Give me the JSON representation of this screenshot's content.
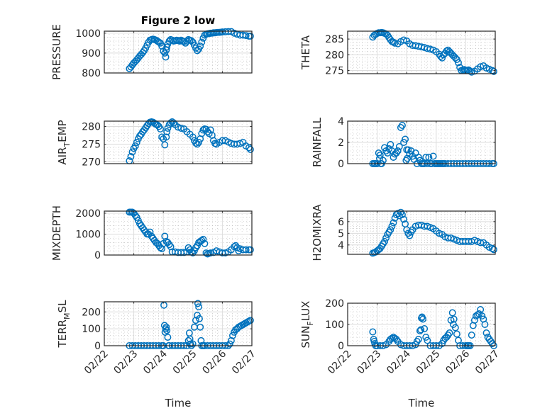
{
  "figure": {
    "marker_color": "#0072BD",
    "marker": "circle-open"
  },
  "chart_data": [
    {
      "id": "pressure",
      "type": "scatter",
      "title": "Figure 2 low",
      "ylabel": "PRESSURE",
      "ylabel_sub": null,
      "xlabel": "",
      "x_unit": "days since 02/22 00:00",
      "xlim": [
        0,
        5
      ],
      "ylim": [
        800,
        1010
      ],
      "yticks": [
        800,
        900,
        1000
      ],
      "xticks": [
        "02/22",
        "02/23",
        "02/24",
        "02/25",
        "02/26",
        "02/27"
      ],
      "xtick_labels_shown": false,
      "grid": "major+minor",
      "x": [
        0.85,
        0.9,
        0.95,
        1.0,
        1.05,
        1.1,
        1.15,
        1.2,
        1.25,
        1.3,
        1.35,
        1.4,
        1.45,
        1.5,
        1.55,
        1.6,
        1.65,
        1.7,
        1.75,
        1.8,
        1.85,
        1.9,
        1.95,
        2.0,
        2.05,
        2.08,
        2.1,
        2.12,
        2.15,
        2.2,
        2.25,
        2.3,
        2.35,
        2.4,
        2.45,
        2.5,
        2.55,
        2.6,
        2.65,
        2.7,
        2.75,
        2.8,
        2.85,
        2.9,
        2.95,
        3.0,
        3.05,
        3.1,
        3.15,
        3.2,
        3.25,
        3.3,
        3.35,
        3.4,
        3.45,
        3.5,
        3.55,
        3.6,
        3.65,
        3.7,
        3.75,
        3.8,
        3.85,
        3.9,
        3.95,
        4.0,
        4.1,
        4.2,
        4.3,
        4.4,
        4.5,
        4.6,
        4.7,
        4.8,
        4.9,
        4.95
      ],
      "y": [
        822,
        830,
        840,
        850,
        858,
        866,
        875,
        885,
        893,
        902,
        912,
        925,
        940,
        955,
        965,
        968,
        970,
        968,
        965,
        960,
        955,
        950,
        935,
        910,
        900,
        880,
        915,
        930,
        945,
        960,
        968,
        965,
        960,
        962,
        965,
        963,
        960,
        965,
        960,
        958,
        950,
        960,
        968,
        965,
        962,
        955,
        940,
        925,
        912,
        920,
        935,
        955,
        975,
        990,
        995,
        997,
        998,
        1000,
        1000,
        1002,
        1002,
        1003,
        1004,
        1004,
        1005,
        1006,
        1007,
        1008,
        1008,
        1000,
        995,
        990,
        990,
        988,
        985,
        985
      ]
    },
    {
      "id": "theta",
      "type": "scatter",
      "title": "",
      "ylabel": "THETA",
      "ylabel_sub": null,
      "xlabel": "",
      "x_unit": "days since 02/22 00:00",
      "xlim": [
        0,
        5
      ],
      "ylim": [
        274,
        287.5
      ],
      "yticks": [
        275,
        280,
        285
      ],
      "xticks": [
        "02/22",
        "02/23",
        "02/24",
        "02/25",
        "02/26",
        "02/27"
      ],
      "xtick_labels_shown": false,
      "grid": "major+minor",
      "x": [
        0.85,
        0.9,
        0.95,
        1.0,
        1.05,
        1.1,
        1.15,
        1.2,
        1.25,
        1.3,
        1.35,
        1.4,
        1.45,
        1.5,
        1.55,
        1.6,
        1.7,
        1.8,
        1.9,
        2.0,
        2.1,
        2.2,
        2.3,
        2.4,
        2.5,
        2.6,
        2.7,
        2.8,
        2.9,
        3.0,
        3.1,
        3.15,
        3.2,
        3.25,
        3.3,
        3.35,
        3.4,
        3.45,
        3.5,
        3.55,
        3.6,
        3.65,
        3.7,
        3.75,
        3.8,
        3.85,
        3.9,
        3.95,
        4.0,
        4.05,
        4.1,
        4.15,
        4.2,
        4.3,
        4.4,
        4.5,
        4.6,
        4.7,
        4.8,
        4.9,
        4.95
      ],
      "y": [
        285.6,
        286.2,
        286.5,
        286.8,
        287.0,
        287.0,
        287.1,
        287.0,
        286.8,
        286.6,
        286.2,
        285.5,
        284.8,
        284.2,
        284.0,
        283.7,
        283.5,
        284.2,
        284.7,
        284.4,
        283.5,
        283.0,
        282.9,
        282.7,
        282.5,
        282.3,
        282.0,
        281.8,
        281.5,
        281.0,
        280.2,
        279.5,
        279.0,
        280.0,
        280.5,
        281.2,
        281.5,
        281.0,
        280.5,
        280.0,
        279.5,
        279.0,
        278.5,
        277.5,
        276.0,
        275.0,
        275.2,
        275.3,
        275.0,
        275.1,
        275.2,
        274.8,
        274.5,
        274.8,
        275.5,
        276.2,
        276.5,
        275.8,
        275.4,
        275.0,
        274.7
      ]
    },
    {
      "id": "air_temp",
      "type": "scatter",
      "title": "",
      "ylabel": "AIR",
      "ylabel_sub": "T",
      "ylabel_rest": "EMP",
      "xlabel": "",
      "x_unit": "days since 02/22 00:00",
      "xlim": [
        0,
        5
      ],
      "ylim": [
        269.5,
        281.5
      ],
      "yticks": [
        270,
        275,
        280
      ],
      "xticks": [
        "02/22",
        "02/23",
        "02/24",
        "02/25",
        "02/26",
        "02/27"
      ],
      "xtick_labels_shown": false,
      "grid": "major+minor",
      "x": [
        0.85,
        0.9,
        0.95,
        1.0,
        1.05,
        1.1,
        1.15,
        1.2,
        1.25,
        1.3,
        1.35,
        1.4,
        1.45,
        1.5,
        1.55,
        1.6,
        1.65,
        1.7,
        1.75,
        1.8,
        1.85,
        1.9,
        1.95,
        2.0,
        2.05,
        2.1,
        2.12,
        2.15,
        2.2,
        2.25,
        2.3,
        2.35,
        2.4,
        2.5,
        2.6,
        2.7,
        2.8,
        2.9,
        3.0,
        3.05,
        3.1,
        3.15,
        3.2,
        3.25,
        3.3,
        3.35,
        3.4,
        3.45,
        3.5,
        3.55,
        3.6,
        3.65,
        3.7,
        3.75,
        3.8,
        3.9,
        4.0,
        4.1,
        4.2,
        4.3,
        4.4,
        4.5,
        4.6,
        4.7,
        4.8,
        4.9,
        4.95
      ],
      "y": [
        270.3,
        271.5,
        272.8,
        273.8,
        274.5,
        275.5,
        276.5,
        277.3,
        277.8,
        278.5,
        279.0,
        279.6,
        280.2,
        280.8,
        281.2,
        281.3,
        281.2,
        280.9,
        280.6,
        280.4,
        280.0,
        279.3,
        277.0,
        276.5,
        274.8,
        277.0,
        278.5,
        279.5,
        280.5,
        281.0,
        281.3,
        281.0,
        280.5,
        279.8,
        279.5,
        279.3,
        278.5,
        277.8,
        277.0,
        276.0,
        275.3,
        275.0,
        275.5,
        276.5,
        278.0,
        279.0,
        279.3,
        279.2,
        278.5,
        278.0,
        279.0,
        277.5,
        276.0,
        275.2,
        275.0,
        275.5,
        276.0,
        276.0,
        275.6,
        275.2,
        275.0,
        275.0,
        275.2,
        275.5,
        274.5,
        274.0,
        273.5
      ]
    },
    {
      "id": "rainfall",
      "type": "scatter",
      "title": "",
      "ylabel": "RAINFALL",
      "ylabel_sub": null,
      "xlabel": "",
      "x_unit": "days since 02/22 00:00",
      "xlim": [
        0,
        5
      ],
      "ylim": [
        0,
        4
      ],
      "yticks": [
        0,
        2,
        4
      ],
      "xticks": [
        "02/22",
        "02/23",
        "02/24",
        "02/25",
        "02/26",
        "02/27"
      ],
      "xtick_labels_shown": false,
      "grid": "major+minor",
      "x": [
        0.85,
        0.9,
        0.95,
        1.0,
        1.05,
        1.08,
        1.1,
        1.12,
        1.15,
        1.2,
        1.25,
        1.3,
        1.35,
        1.4,
        1.45,
        1.5,
        1.55,
        1.6,
        1.65,
        1.7,
        1.75,
        1.8,
        1.85,
        1.9,
        1.95,
        1.98,
        2.0,
        2.02,
        2.05,
        2.1,
        2.15,
        2.2,
        2.25,
        2.3,
        2.35,
        2.4,
        2.45,
        2.5,
        2.55,
        2.6,
        2.65,
        2.7,
        2.75,
        2.8,
        2.85,
        2.9,
        2.95,
        3.0,
        3.05,
        3.1,
        3.15,
        3.2,
        3.25,
        3.3,
        3.4,
        3.5,
        3.6,
        3.7,
        3.8,
        3.9,
        4.0,
        4.1,
        4.2,
        4.3,
        4.4,
        4.5,
        4.6,
        4.7,
        4.8,
        4.9,
        4.95
      ],
      "y": [
        0,
        0,
        0,
        0,
        1.0,
        0.5,
        0.8,
        0,
        0,
        0.3,
        1.5,
        1.2,
        1.0,
        1.4,
        1.8,
        1.2,
        0.6,
        0.9,
        1.0,
        1.2,
        1.6,
        3.4,
        3.6,
        2.0,
        2.3,
        0.3,
        1.3,
        0.5,
        1.3,
        0.9,
        1.2,
        0.7,
        0.4,
        1.0,
        0,
        0.6,
        0.3,
        0,
        0,
        0,
        0.6,
        0,
        0.6,
        0,
        0,
        0.7,
        0,
        0,
        0,
        0,
        0,
        0,
        0,
        0,
        0,
        0,
        0,
        0,
        0,
        0,
        0,
        0,
        0,
        0,
        0,
        0,
        0,
        0,
        0,
        0,
        0
      ]
    },
    {
      "id": "mixdepth",
      "type": "scatter",
      "title": "",
      "ylabel": "MIXDEPTH",
      "ylabel_sub": null,
      "xlabel": "",
      "x_unit": "days since 02/22 00:00",
      "xlim": [
        0,
        5
      ],
      "ylim": [
        0,
        2100
      ],
      "yticks": [
        0,
        1000,
        2000
      ],
      "xticks": [
        "02/22",
        "02/23",
        "02/24",
        "02/25",
        "02/26",
        "02/27"
      ],
      "xtick_labels_shown": false,
      "grid": "major+minor",
      "x": [
        0.85,
        0.9,
        0.95,
        1.0,
        1.05,
        1.1,
        1.15,
        1.2,
        1.25,
        1.3,
        1.35,
        1.4,
        1.45,
        1.5,
        1.55,
        1.6,
        1.65,
        1.7,
        1.75,
        1.8,
        1.85,
        1.9,
        1.95,
        2.0,
        2.05,
        2.1,
        2.15,
        2.2,
        2.25,
        2.3,
        2.4,
        2.5,
        2.6,
        2.7,
        2.8,
        2.85,
        2.9,
        2.95,
        3.0,
        3.05,
        3.1,
        3.15,
        3.2,
        3.25,
        3.3,
        3.35,
        3.4,
        3.45,
        3.5,
        3.55,
        3.6,
        3.7,
        3.8,
        3.9,
        4.0,
        4.1,
        4.2,
        4.3,
        4.4,
        4.45,
        4.5,
        4.55,
        4.6,
        4.7,
        4.8,
        4.9,
        4.95
      ],
      "y": [
        2050,
        2050,
        2050,
        2000,
        1900,
        1800,
        1650,
        1500,
        1400,
        1300,
        1200,
        1100,
        1000,
        1000,
        1100,
        900,
        800,
        700,
        600,
        550,
        450,
        350,
        300,
        550,
        900,
        650,
        600,
        500,
        400,
        150,
        150,
        120,
        120,
        120,
        150,
        350,
        250,
        150,
        100,
        200,
        350,
        450,
        600,
        650,
        700,
        750,
        550,
        100,
        50,
        80,
        100,
        120,
        200,
        150,
        100,
        100,
        150,
        250,
        400,
        450,
        350,
        200,
        300,
        250,
        250,
        250,
        250
      ]
    },
    {
      "id": "h2omixra",
      "type": "scatter",
      "title": "",
      "ylabel": "H2OMIXRA",
      "ylabel_sub": null,
      "xlabel": "",
      "x_unit": "days since 02/22 00:00",
      "xlim": [
        0,
        5
      ],
      "ylim": [
        3.2,
        6.9
      ],
      "yticks": [
        4,
        5,
        6
      ],
      "xticks": [
        "02/22",
        "02/23",
        "02/24",
        "02/25",
        "02/26",
        "02/27"
      ],
      "xtick_labels_shown": false,
      "grid": "major+minor",
      "x": [
        0.85,
        0.9,
        0.95,
        1.0,
        1.05,
        1.1,
        1.15,
        1.2,
        1.25,
        1.3,
        1.35,
        1.4,
        1.45,
        1.5,
        1.55,
        1.6,
        1.65,
        1.7,
        1.75,
        1.8,
        1.85,
        1.9,
        1.95,
        2.0,
        2.05,
        2.1,
        2.15,
        2.2,
        2.3,
        2.4,
        2.5,
        2.6,
        2.7,
        2.8,
        2.9,
        3.0,
        3.1,
        3.2,
        3.3,
        3.4,
        3.5,
        3.6,
        3.7,
        3.8,
        3.9,
        4.0,
        4.1,
        4.2,
        4.3,
        4.4,
        4.5,
        4.6,
        4.7,
        4.8,
        4.9,
        4.95
      ],
      "y": [
        3.3,
        3.35,
        3.4,
        3.5,
        3.6,
        3.7,
        3.9,
        4.1,
        4.3,
        4.6,
        4.9,
        5.1,
        5.3,
        5.6,
        5.9,
        6.3,
        6.6,
        6.7,
        6.5,
        6.8,
        6.6,
        6.2,
        5.8,
        5.3,
        5.0,
        4.8,
        5.1,
        5.3,
        5.6,
        5.7,
        5.7,
        5.6,
        5.6,
        5.5,
        5.4,
        5.2,
        5.0,
        4.9,
        4.7,
        4.6,
        4.6,
        4.5,
        4.4,
        4.3,
        4.3,
        4.3,
        4.3,
        4.3,
        4.4,
        4.3,
        4.2,
        4.2,
        4.0,
        3.8,
        3.7,
        3.6
      ]
    },
    {
      "id": "terr_msl",
      "type": "scatter",
      "title": "",
      "ylabel": "TERR",
      "ylabel_sub": "M",
      "ylabel_rest": "SL",
      "xlabel": "Time",
      "x_unit": "days since 02/22 00:00",
      "xlim": [
        0,
        5
      ],
      "ylim": [
        0,
        260
      ],
      "yticks": [
        0,
        100,
        200
      ],
      "xticks": [
        "02/22",
        "02/23",
        "02/24",
        "02/25",
        "02/26",
        "02/27"
      ],
      "xtick_labels_shown": true,
      "grid": "major+minor",
      "x": [
        0.85,
        0.95,
        1.05,
        1.15,
        1.25,
        1.35,
        1.45,
        1.55,
        1.65,
        1.75,
        1.85,
        1.95,
        2.0,
        2.02,
        2.04,
        2.06,
        2.08,
        2.1,
        2.12,
        2.15,
        2.18,
        2.2,
        2.3,
        2.4,
        2.5,
        2.6,
        2.7,
        2.8,
        2.85,
        2.88,
        2.9,
        2.92,
        2.95,
        3.0,
        3.05,
        3.1,
        3.15,
        3.17,
        3.2,
        3.22,
        3.25,
        3.28,
        3.3,
        3.35,
        3.4,
        3.5,
        3.6,
        3.7,
        3.8,
        3.9,
        4.0,
        4.1,
        4.2,
        4.25,
        4.3,
        4.35,
        4.4,
        4.45,
        4.5,
        4.55,
        4.6,
        4.65,
        4.7,
        4.75,
        4.8,
        4.85,
        4.9,
        4.95
      ],
      "y": [
        0,
        0,
        0,
        0,
        0,
        0,
        0,
        0,
        0,
        0,
        0,
        0,
        0,
        240,
        120,
        80,
        100,
        110,
        90,
        50,
        0,
        0,
        0,
        0,
        0,
        0,
        0,
        0,
        30,
        75,
        40,
        10,
        0,
        10,
        110,
        150,
        180,
        250,
        230,
        160,
        110,
        30,
        0,
        0,
        0,
        0,
        0,
        0,
        0,
        0,
        0,
        0,
        0,
        10,
        30,
        60,
        80,
        95,
        100,
        110,
        115,
        120,
        125,
        130,
        135,
        140,
        145,
        150
      ]
    },
    {
      "id": "sun_flux",
      "type": "scatter",
      "title": "",
      "ylabel": "SUN",
      "ylabel_sub": "F",
      "ylabel_rest": "LUX",
      "xlabel": "Time",
      "x_unit": "days since 02/22 00:00",
      "xlim": [
        0,
        5
      ],
      "ylim": [
        0,
        200
      ],
      "yticks": [
        0,
        100,
        200
      ],
      "xticks": [
        "02/22",
        "02/23",
        "02/24",
        "02/25",
        "02/26",
        "02/27"
      ],
      "xtick_labels_shown": true,
      "grid": "major+minor",
      "x": [
        0.85,
        0.88,
        0.9,
        0.92,
        0.95,
        1.0,
        1.1,
        1.2,
        1.3,
        1.4,
        1.45,
        1.5,
        1.55,
        1.6,
        1.65,
        1.7,
        1.8,
        1.9,
        2.0,
        2.1,
        2.2,
        2.3,
        2.35,
        2.4,
        2.45,
        2.48,
        2.5,
        2.52,
        2.55,
        2.6,
        2.65,
        2.7,
        2.8,
        2.9,
        3.0,
        3.1,
        3.2,
        3.25,
        3.3,
        3.35,
        3.4,
        3.45,
        3.5,
        3.55,
        3.58,
        3.6,
        3.65,
        3.7,
        3.75,
        3.8,
        3.9,
        4.0,
        4.05,
        4.1,
        4.15,
        4.2,
        4.25,
        4.3,
        4.35,
        4.4,
        4.45,
        4.5,
        4.55,
        4.6,
        4.65,
        4.7,
        4.75,
        4.8,
        4.85,
        4.9,
        4.95
      ],
      "y": [
        65,
        30,
        20,
        10,
        0,
        0,
        0,
        0,
        5,
        20,
        30,
        35,
        40,
        35,
        30,
        20,
        5,
        0,
        0,
        0,
        0,
        5,
        20,
        30,
        70,
        75,
        130,
        135,
        125,
        80,
        40,
        25,
        0,
        0,
        0,
        0,
        10,
        25,
        35,
        40,
        50,
        60,
        120,
        155,
        100,
        125,
        85,
        55,
        25,
        0,
        0,
        0,
        0,
        0,
        0,
        50,
        95,
        120,
        140,
        145,
        150,
        170,
        140,
        125,
        100,
        60,
        40,
        30,
        20,
        10,
        0
      ]
    }
  ],
  "xlabel_bottom": "Time"
}
